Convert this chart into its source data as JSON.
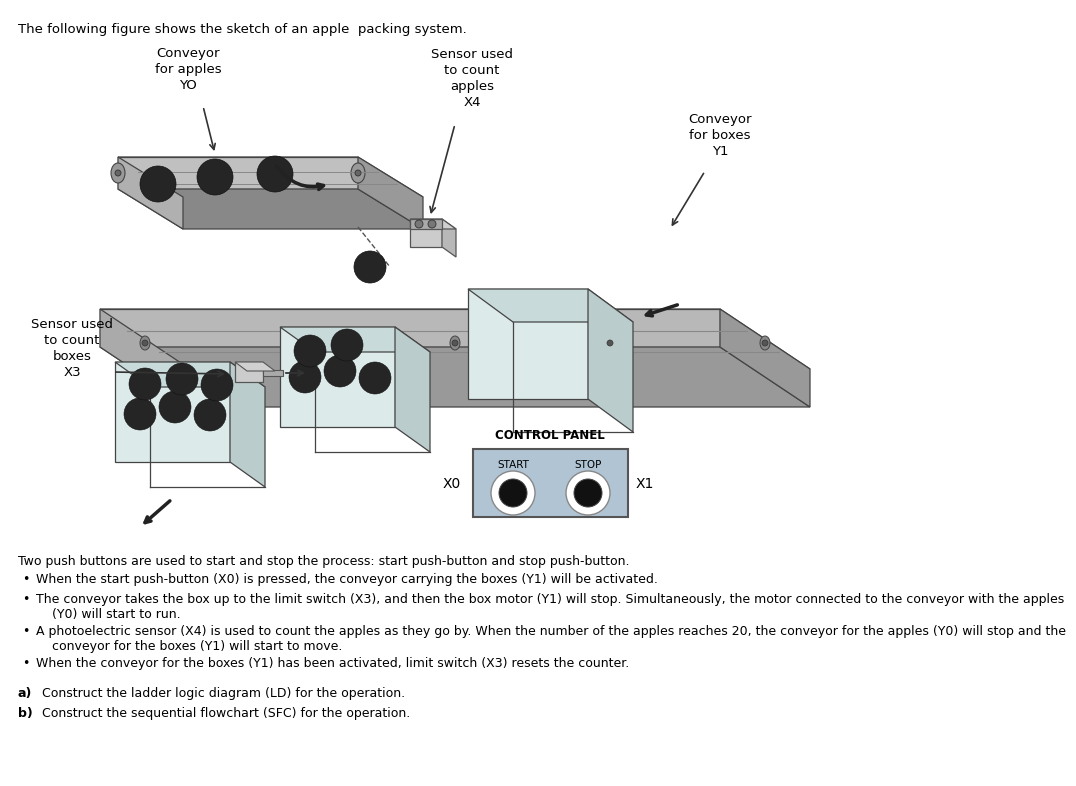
{
  "title_text": "The following figure shows the sketch of an apple  packing system.",
  "labels": {
    "conveyor_apples": "Conveyor\nfor apples\nYO",
    "sensor_count_apples": "Sensor used\nto count\napples\nX4",
    "conveyor_boxes": "Conveyor\nfor boxes\nY1",
    "sensor_count_boxes": "Sensor used\nto count\nboxes\nX3",
    "control_panel": "CONTROL PANEL",
    "start_label": "START",
    "stop_label": "STOP",
    "x0_label": "X0",
    "x1_label": "X1"
  },
  "body_text_intro": "Two push buttons are used to start and stop the process: start push-button and stop push-button.",
  "body_bullets": [
    "When the start push-button (X0) is pressed, the conveyor carrying the boxes (Y1) will be activated.",
    "The conveyor takes the box up to the limit switch (X3), and then the box motor (Y1) will stop. Simultaneously, the motor connected to the conveyor with the apples\n    (Y0) will start to run.",
    "A photoelectric sensor (X4) is used to count the apples as they go by. When the number of the apples reaches 20, the conveyor for the apples (Y0) will stop and the\n    conveyor for the boxes (Y1) will start to move.",
    "When the conveyor for the boxes (Y1) has been activated, limit switch (X3) resets the counter."
  ],
  "footer_text": [
    "a)  Construct the ladder logic diagram (LD) for the operation.",
    "b)  Construct the sequential flowchart (SFC) for the operation."
  ],
  "bg_color": "#ffffff",
  "text_color": "#000000",
  "apple_color": "#252525",
  "panel_color": "#b0c4d4",
  "belt_top_color": "#d8d8d8",
  "belt_side_color": "#aaaaaa",
  "belt_bot_color": "#888888",
  "box_front_color": "#ddeaea",
  "box_top_color": "#c8dada",
  "box_side_color": "#bbcccc",
  "sensor_color": "#cccccc",
  "rail_color": "#bbbbbb"
}
